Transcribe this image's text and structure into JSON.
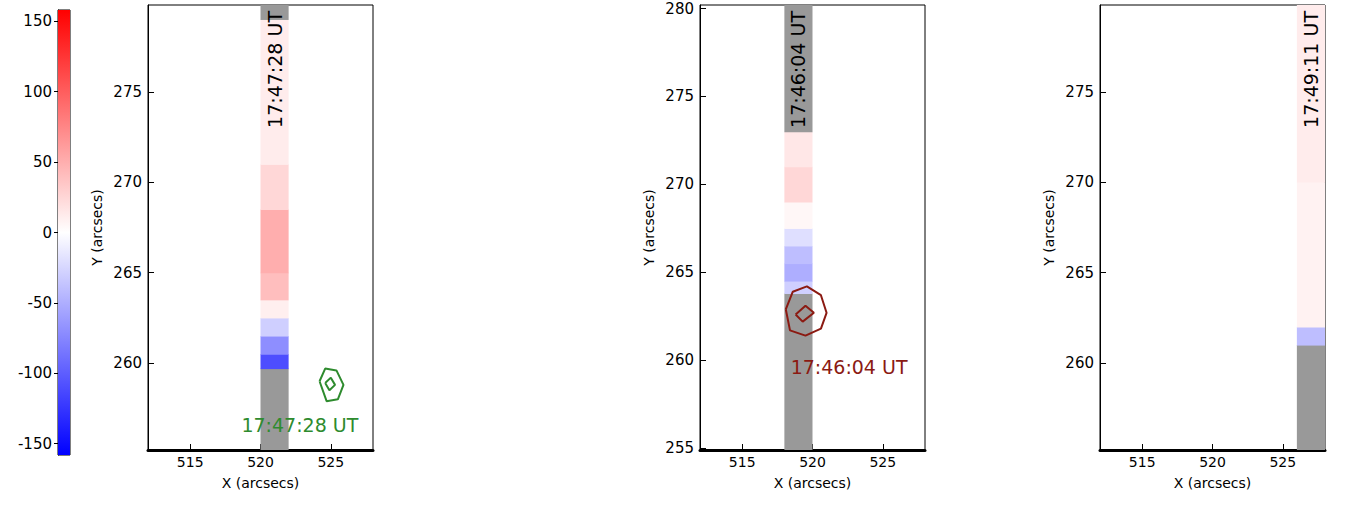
{
  "chart_data": [
    {
      "type": "colorbar",
      "ylim": [
        -158,
        158
      ],
      "yticks": [
        -150,
        -100,
        -50,
        0,
        50,
        100,
        150
      ],
      "colors": [
        "#0000ff",
        "#ffffff",
        "#ff0000"
      ]
    },
    {
      "type": "heatmap",
      "xlabel": "X (arcsecs)",
      "ylabel": "Y (arcsecs)",
      "xlim": [
        512,
        528
      ],
      "ylim": [
        255.2,
        279.8
      ],
      "xticks": [
        515,
        520,
        525
      ],
      "yticks": [
        260,
        265,
        270,
        275
      ],
      "slit": {
        "x": [
          520,
          522
        ],
        "label": "17:47:28 UT",
        "y_bins": [
          255.2,
          259.7,
          260.5,
          261.5,
          262.5,
          263.5,
          265,
          268.5,
          271,
          279,
          279.8
        ],
        "velocity": [
          null,
          -110,
          -70,
          -30,
          10,
          40,
          50,
          25,
          12,
          null
        ]
      },
      "contours": {
        "color": "#2e8b2e",
        "lines": [
          {
            "x": [
              524.2,
              524.6,
              525.4,
              525.9,
              525.5,
              524.7,
              524.2
            ],
            "y": [
              259.0,
              259.7,
              259.6,
              258.8,
              258.0,
              257.9,
              259.0
            ]
          },
          {
            "x": [
              524.6,
              525.0,
              525.3,
              524.9,
              524.6
            ],
            "y": [
              258.9,
              259.2,
              258.8,
              258.5,
              258.9
            ]
          }
        ]
      },
      "annotations": [
        {
          "text": "17:47:28 UT",
          "x": 522.8,
          "y": 256.6,
          "color": "#2e8b2e"
        }
      ]
    },
    {
      "type": "heatmap",
      "xlabel": "X (arcsecs)",
      "ylabel": "Y (arcsecs)",
      "xlim": [
        512,
        528
      ],
      "ylim": [
        254.9,
        280.2
      ],
      "xticks": [
        515,
        520,
        525
      ],
      "yticks": [
        255,
        260,
        265,
        270,
        275,
        280
      ],
      "slit": {
        "x": [
          518,
          520
        ],
        "label": "17:46:04 UT",
        "y_bins": [
          254.9,
          263.8,
          264.5,
          265.5,
          266.5,
          267.5,
          269,
          271,
          273,
          280.2
        ],
        "velocity": [
          null,
          -30,
          -50,
          -40,
          -20,
          5,
          25,
          15,
          null
        ]
      },
      "contours": {
        "color": "#8b1a12",
        "lines": [
          {
            "x": [
              518.1,
              518.6,
              519.6,
              520.6,
              521.0,
              520.6,
              519.5,
              518.4,
              518.1
            ],
            "y": [
              262.9,
              263.9,
              264.2,
              263.7,
              262.7,
              261.8,
              261.4,
              261.7,
              262.9
            ]
          },
          {
            "x": [
              518.8,
              519.5,
              520.1,
              519.3,
              518.8
            ],
            "y": [
              262.6,
              263.1,
              262.7,
              262.2,
              262.6
            ]
          }
        ]
      },
      "annotations": [
        {
          "text": "17:46:04 UT",
          "x": 522.6,
          "y": 259.6,
          "color": "#8b1a12"
        }
      ]
    },
    {
      "type": "heatmap",
      "xlabel": "X (arcsecs)",
      "ylabel": "Y (arcsecs)",
      "xlim": [
        512,
        528
      ],
      "ylim": [
        255.2,
        279.8
      ],
      "xticks": [
        515,
        520,
        525
      ],
      "yticks": [
        260,
        265,
        270,
        275
      ],
      "slit": {
        "x": [
          526,
          528
        ],
        "label": "17:49:11 UT",
        "y_bins": [
          255.2,
          261,
          262,
          270,
          279.8
        ],
        "velocity": [
          null,
          -40,
          8,
          12
        ]
      }
    }
  ]
}
